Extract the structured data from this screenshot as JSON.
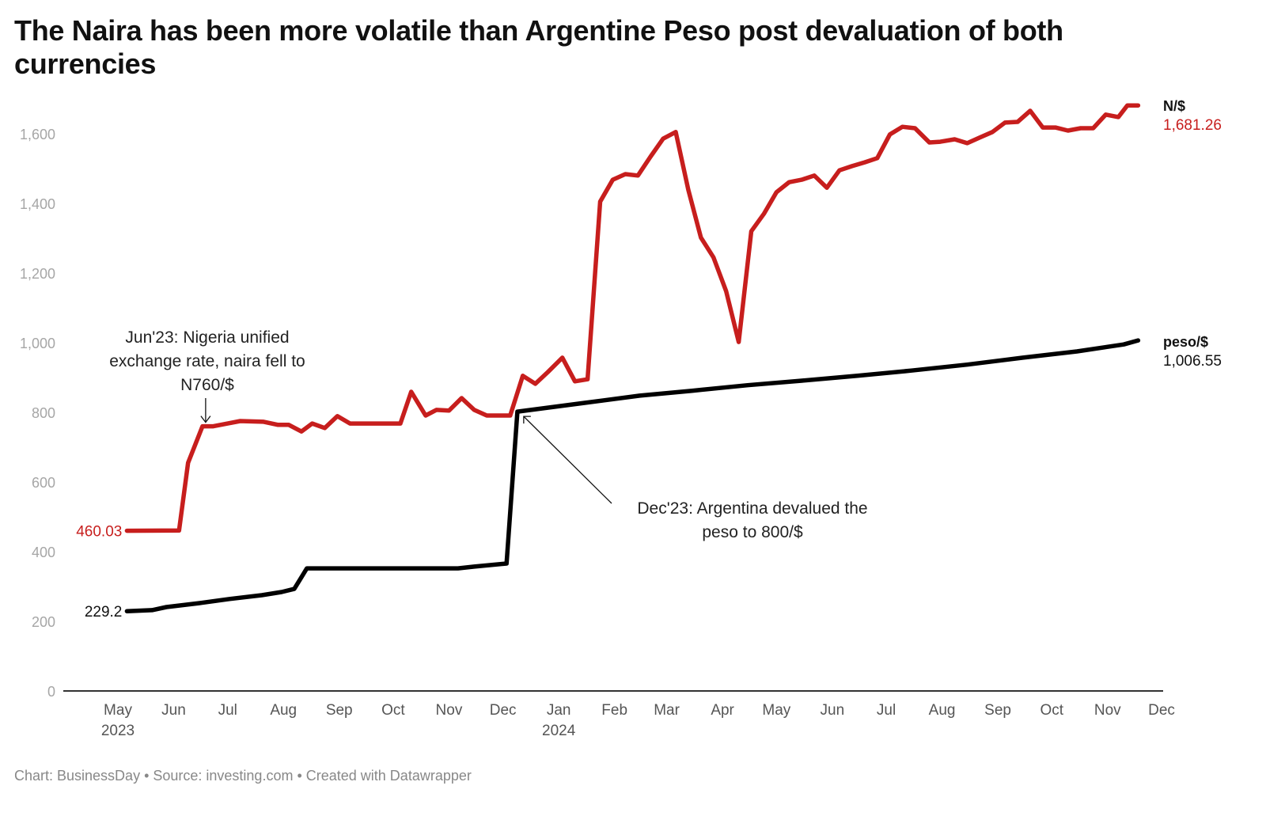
{
  "title": "The Naira has been more volatile than Argentine Peso post devaluation of both currencies",
  "footer": "Chart: BusinessDay • Source: investing.com • Created with Datawrapper",
  "colors": {
    "naira": "#c71e1d",
    "peso": "#000000",
    "axis": "#333333",
    "tick": "#a6a6a6"
  },
  "chart_data": {
    "type": "line",
    "title": "The Naira has been more volatile than Argentine Peso post devaluation of both currencies",
    "xlabel": "",
    "ylabel": "",
    "ylim": [
      0,
      1600
    ],
    "yticks": [
      0,
      200,
      400,
      600,
      800,
      1000,
      1200,
      1400,
      1600
    ],
    "ytick_labels": [
      "0",
      "200",
      "400",
      "600",
      "800",
      "1,000",
      "1,200",
      "1,400",
      "1,600"
    ],
    "xlim": [
      "2023-04-15",
      "2024-12-01"
    ],
    "xticks": [
      {
        "date": "2023-05-01",
        "label": "May",
        "sub": "2023"
      },
      {
        "date": "2023-06-01",
        "label": "Jun",
        "sub": ""
      },
      {
        "date": "2023-07-01",
        "label": "Jul",
        "sub": ""
      },
      {
        "date": "2023-08-01",
        "label": "Aug",
        "sub": ""
      },
      {
        "date": "2023-09-01",
        "label": "Sep",
        "sub": ""
      },
      {
        "date": "2023-10-01",
        "label": "Oct",
        "sub": ""
      },
      {
        "date": "2023-11-01",
        "label": "Nov",
        "sub": ""
      },
      {
        "date": "2023-12-01",
        "label": "Dec",
        "sub": ""
      },
      {
        "date": "2024-01-01",
        "label": "Jan",
        "sub": "2024"
      },
      {
        "date": "2024-02-01",
        "label": "Feb",
        "sub": ""
      },
      {
        "date": "2024-03-01",
        "label": "Mar",
        "sub": ""
      },
      {
        "date": "2024-04-01",
        "label": "Apr",
        "sub": ""
      },
      {
        "date": "2024-05-01",
        "label": "May",
        "sub": ""
      },
      {
        "date": "2024-06-01",
        "label": "Jun",
        "sub": ""
      },
      {
        "date": "2024-07-01",
        "label": "Jul",
        "sub": ""
      },
      {
        "date": "2024-08-01",
        "label": "Aug",
        "sub": ""
      },
      {
        "date": "2024-09-01",
        "label": "Sep",
        "sub": ""
      },
      {
        "date": "2024-10-01",
        "label": "Oct",
        "sub": ""
      },
      {
        "date": "2024-11-01",
        "label": "Nov",
        "sub": ""
      },
      {
        "date": "2024-12-01",
        "label": "Dec",
        "sub": ""
      }
    ],
    "grid": false,
    "series": [
      {
        "name": "N/$",
        "color": "#c71e1d",
        "start_label": "460.03",
        "end_label": "1,681.26",
        "points": [
          [
            "2023-05-06",
            460.03
          ],
          [
            "2023-06-04",
            461
          ],
          [
            "2023-06-09",
            655
          ],
          [
            "2023-06-17",
            760
          ],
          [
            "2023-06-23",
            760
          ],
          [
            "2023-07-01",
            768
          ],
          [
            "2023-07-08",
            775
          ],
          [
            "2023-07-21",
            773
          ],
          [
            "2023-07-29",
            764
          ],
          [
            "2023-08-04",
            764
          ],
          [
            "2023-08-11",
            745
          ],
          [
            "2023-08-17",
            768
          ],
          [
            "2023-08-24",
            755
          ],
          [
            "2023-08-31",
            789
          ],
          [
            "2023-09-07",
            768
          ],
          [
            "2023-09-25",
            768
          ],
          [
            "2023-10-05",
            768
          ],
          [
            "2023-10-11",
            859
          ],
          [
            "2023-10-19",
            791
          ],
          [
            "2023-10-25",
            807
          ],
          [
            "2023-11-01",
            805
          ],
          [
            "2023-11-08",
            841
          ],
          [
            "2023-11-15",
            807
          ],
          [
            "2023-11-22",
            791
          ],
          [
            "2023-12-01",
            791
          ],
          [
            "2023-12-05",
            791
          ],
          [
            "2023-12-12",
            905
          ],
          [
            "2023-12-19",
            882
          ],
          [
            "2023-12-26",
            916
          ],
          [
            "2024-01-03",
            957
          ],
          [
            "2024-01-10",
            889
          ],
          [
            "2024-01-17",
            895
          ],
          [
            "2024-01-24",
            1405
          ],
          [
            "2024-01-31",
            1468
          ],
          [
            "2024-02-07",
            1484
          ],
          [
            "2024-02-14",
            1480
          ],
          [
            "2024-02-21",
            1534
          ],
          [
            "2024-02-28",
            1586
          ],
          [
            "2024-03-06",
            1605
          ],
          [
            "2024-03-13",
            1439
          ],
          [
            "2024-03-20",
            1302
          ],
          [
            "2024-03-27",
            1245
          ],
          [
            "2024-04-03",
            1148
          ],
          [
            "2024-04-10",
            1002
          ],
          [
            "2024-04-17",
            1320
          ],
          [
            "2024-04-24",
            1370
          ],
          [
            "2024-05-01",
            1432
          ],
          [
            "2024-05-08",
            1461
          ],
          [
            "2024-05-15",
            1468
          ],
          [
            "2024-05-22",
            1480
          ],
          [
            "2024-05-29",
            1445
          ],
          [
            "2024-06-05",
            1495
          ],
          [
            "2024-06-12",
            1507
          ],
          [
            "2024-06-19",
            1518
          ],
          [
            "2024-06-26",
            1530
          ],
          [
            "2024-07-03",
            1598
          ],
          [
            "2024-07-10",
            1620
          ],
          [
            "2024-07-17",
            1616
          ],
          [
            "2024-07-25",
            1575
          ],
          [
            "2024-07-31",
            1577
          ],
          [
            "2024-08-08",
            1584
          ],
          [
            "2024-08-15",
            1573
          ],
          [
            "2024-08-22",
            1589
          ],
          [
            "2024-08-29",
            1605
          ],
          [
            "2024-09-05",
            1632
          ],
          [
            "2024-09-12",
            1634
          ],
          [
            "2024-09-19",
            1666
          ],
          [
            "2024-09-26",
            1618
          ],
          [
            "2024-10-03",
            1618
          ],
          [
            "2024-10-10",
            1609
          ],
          [
            "2024-10-17",
            1616
          ],
          [
            "2024-10-24",
            1616
          ],
          [
            "2024-10-31",
            1655
          ],
          [
            "2024-11-07",
            1648
          ],
          [
            "2024-11-12",
            1681.26
          ],
          [
            "2024-11-18",
            1681.26
          ]
        ]
      },
      {
        "name": "peso/$",
        "color": "#000000",
        "start_label": "229.2",
        "end_label": "1,006.55",
        "points": [
          [
            "2023-05-06",
            229.2
          ],
          [
            "2023-05-20",
            232
          ],
          [
            "2023-05-28",
            241
          ],
          [
            "2023-06-15",
            252
          ],
          [
            "2023-07-02",
            264
          ],
          [
            "2023-07-20",
            275
          ],
          [
            "2023-07-31",
            284
          ],
          [
            "2023-08-07",
            293
          ],
          [
            "2023-08-14",
            352
          ],
          [
            "2023-09-07",
            352
          ],
          [
            "2023-10-20",
            352
          ],
          [
            "2023-11-06",
            352
          ],
          [
            "2023-11-15",
            357
          ],
          [
            "2023-12-03",
            366
          ],
          [
            "2023-12-09",
            802
          ],
          [
            "2024-01-15",
            827
          ],
          [
            "2024-02-15",
            848
          ],
          [
            "2024-03-15",
            862
          ],
          [
            "2024-04-15",
            878
          ],
          [
            "2024-05-15",
            891
          ],
          [
            "2024-06-15",
            905
          ],
          [
            "2024-07-15",
            920
          ],
          [
            "2024-08-15",
            937
          ],
          [
            "2024-09-15",
            957
          ],
          [
            "2024-10-15",
            975
          ],
          [
            "2024-11-10",
            995
          ],
          [
            "2024-11-18",
            1006.55
          ]
        ]
      }
    ],
    "annotations": [
      {
        "id": "jun23",
        "lines": [
          "Jun'23: Nigeria unified",
          "exchange rate, naira fell to",
          "N760/$"
        ],
        "target": [
          "2023-06-17",
          760
        ]
      },
      {
        "id": "dec23",
        "lines": [
          "Dec'23: Argentina devalued the",
          "peso to 800/$"
        ],
        "target": [
          "2023-12-09",
          802
        ]
      }
    ]
  }
}
